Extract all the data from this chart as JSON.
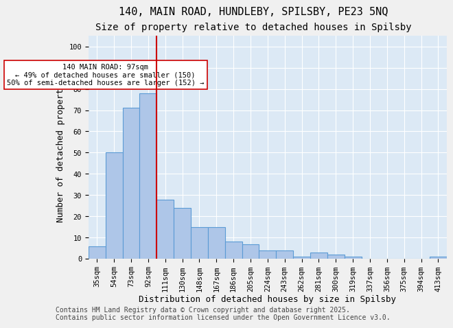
{
  "title_line1": "140, MAIN ROAD, HUNDLEBY, SPILSBY, PE23 5NQ",
  "title_line2": "Size of property relative to detached houses in Spilsby",
  "xlabel": "Distribution of detached houses by size in Spilsby",
  "ylabel": "Number of detached properties",
  "categories": [
    "35sqm",
    "54sqm",
    "73sqm",
    "92sqm",
    "111sqm",
    "130sqm",
    "148sqm",
    "167sqm",
    "186sqm",
    "205sqm",
    "224sqm",
    "243sqm",
    "262sqm",
    "281sqm",
    "300sqm",
    "319sqm",
    "337sqm",
    "356sqm",
    "375sqm",
    "394sqm",
    "413sqm"
  ],
  "values": [
    6,
    50,
    71,
    78,
    28,
    24,
    15,
    15,
    8,
    7,
    4,
    4,
    1,
    3,
    2,
    1,
    0,
    0,
    0,
    0,
    1
  ],
  "bar_color": "#aec6e8",
  "bar_edgecolor": "#5b9bd5",
  "bar_linewidth": 0.8,
  "vline_x_index": 3.5,
  "vline_color": "#cc0000",
  "annotation_text": "140 MAIN ROAD: 97sqm\n← 49% of detached houses are smaller (150)\n50% of semi-detached houses are larger (152) →",
  "annotation_box_color": "#ffffff",
  "annotation_box_edgecolor": "#cc0000",
  "ylim": [
    0,
    105
  ],
  "background_color": "#dce9f5",
  "footer_text": "Contains HM Land Registry data © Crown copyright and database right 2025.\nContains public sector information licensed under the Open Government Licence v3.0.",
  "grid_color": "#ffffff",
  "title_fontsize": 11,
  "subtitle_fontsize": 10,
  "axis_label_fontsize": 9,
  "tick_fontsize": 7.5,
  "footer_fontsize": 7
}
